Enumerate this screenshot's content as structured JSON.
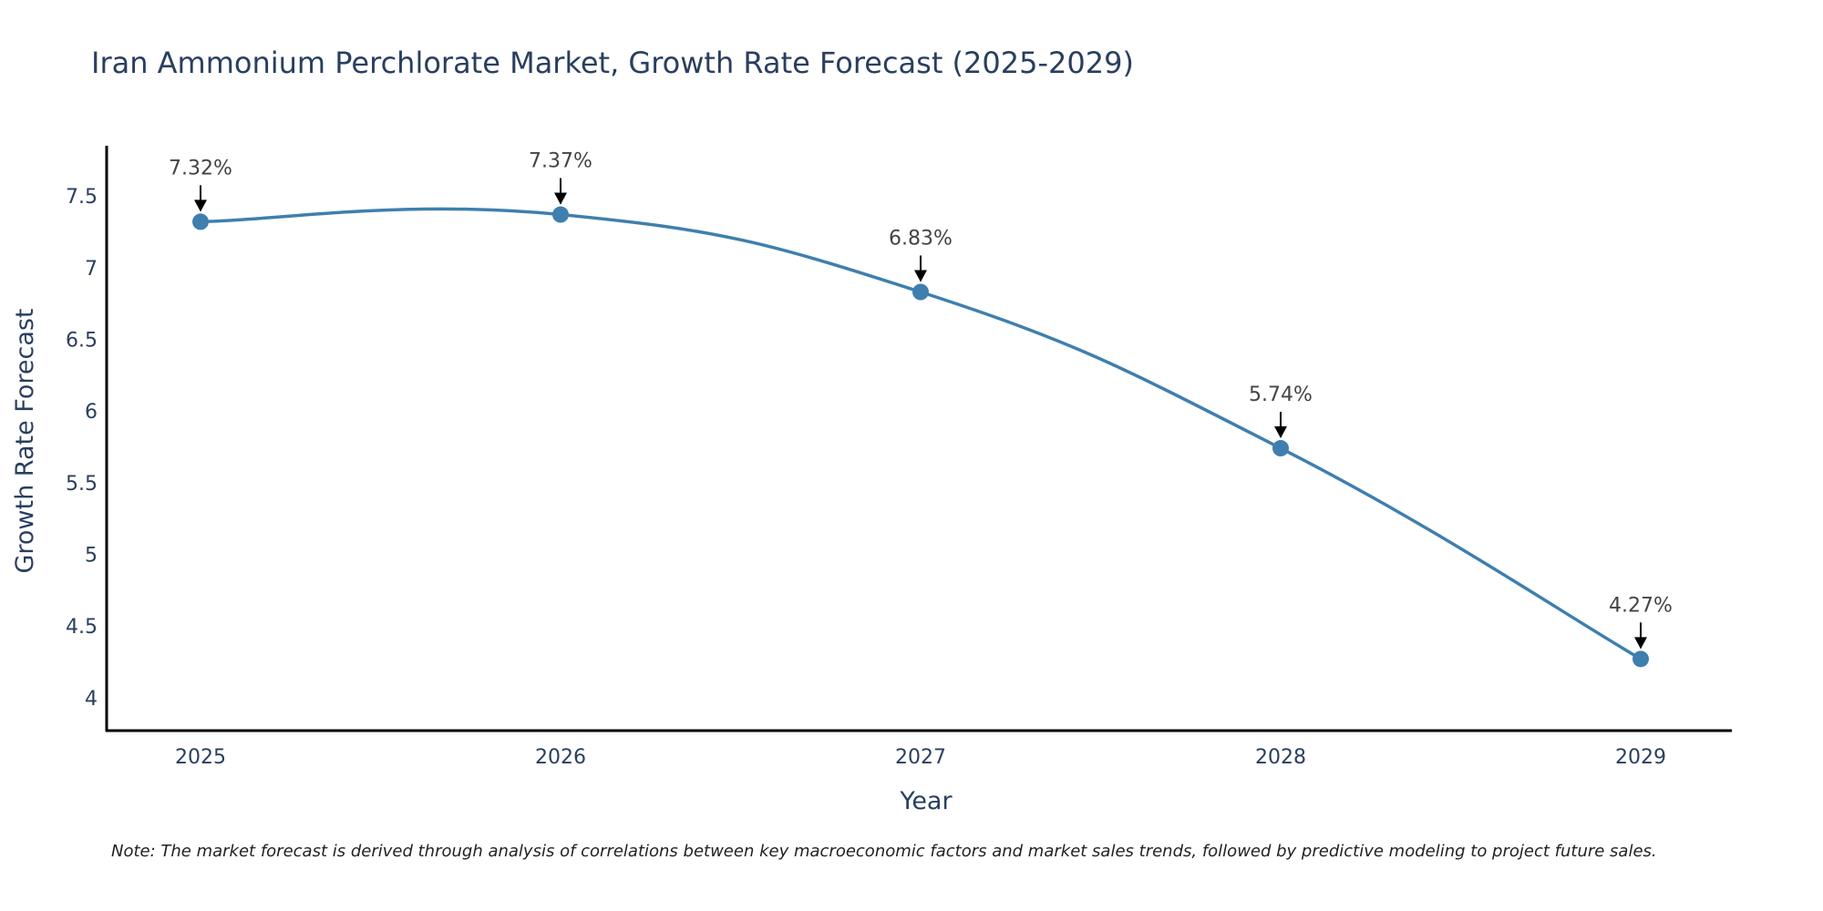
{
  "chart_data": {
    "type": "line",
    "title": "Iran Ammonium Perchlorate Market, Growth Rate Forecast (2025-2029)",
    "xlabel": "Year",
    "ylabel": "Growth Rate Forecast",
    "categories": [
      "2025",
      "2026",
      "2027",
      "2028",
      "2029"
    ],
    "series": [
      {
        "name": "Growth Rate Forecast",
        "values": [
          7.32,
          7.37,
          6.83,
          5.74,
          4.27
        ],
        "labels": [
          "7.32%",
          "7.37%",
          "6.83%",
          "5.74%",
          "4.27%"
        ]
      }
    ],
    "ylim": [
      3.77,
      7.85
    ],
    "yticks": [
      4,
      4.5,
      5,
      5.5,
      6,
      6.5,
      7,
      7.5
    ],
    "ytick_labels": [
      "4",
      "4.5",
      "5",
      "5.5",
      "6",
      "6.5",
      "7",
      "7.5"
    ],
    "grid": false,
    "line_color": "#3f7fae",
    "marker_color": "#3f7fae",
    "note": "Note: The market forecast is derived through analysis of correlations between key macroeconomic factors and market sales trends, followed by predictive modeling to project future sales."
  }
}
